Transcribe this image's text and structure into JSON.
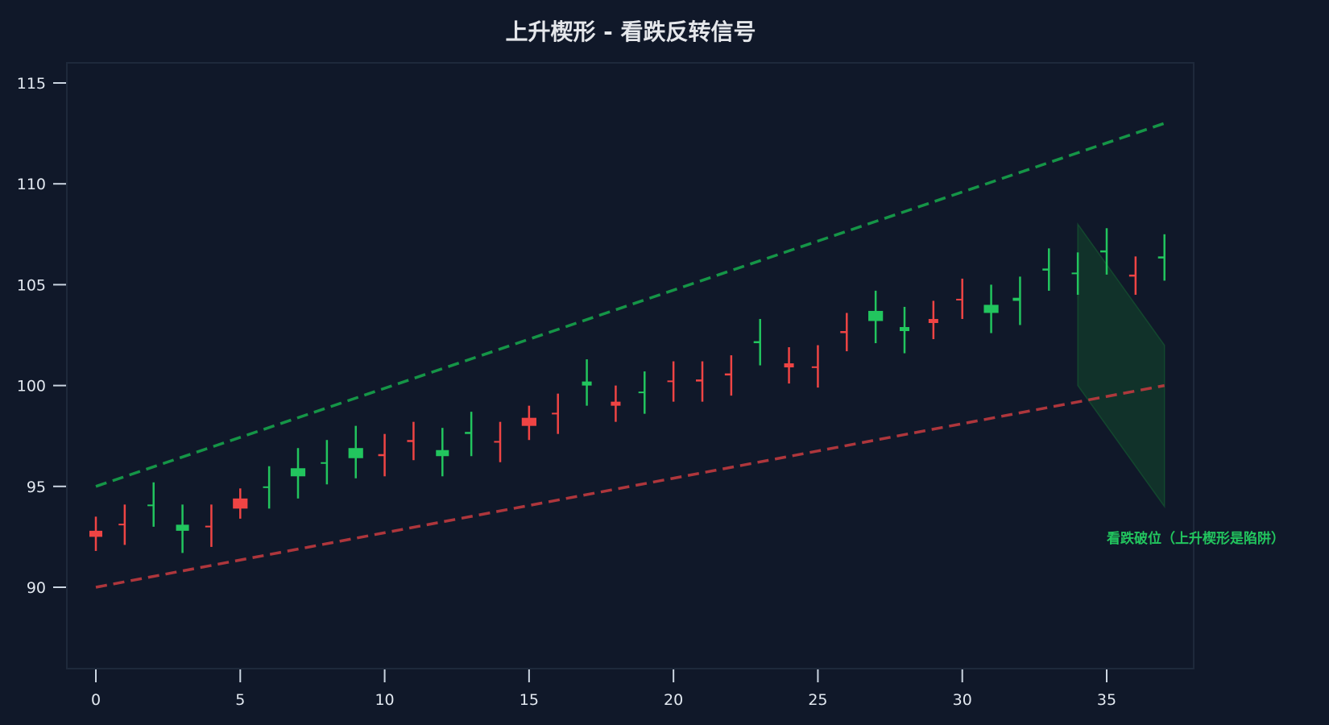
{
  "chart_data": {
    "type": "candlestick",
    "title": "上升楔形 - 看跌反转信号",
    "xlabel": "",
    "ylabel": "",
    "xlim": [
      -1,
      38
    ],
    "ylim": [
      86,
      116
    ],
    "x_ticks": [
      0,
      5,
      10,
      15,
      20,
      25,
      30,
      35
    ],
    "y_ticks": [
      90,
      95,
      100,
      105,
      110,
      115
    ],
    "grid": false,
    "colors": {
      "up": "#22c55e",
      "down": "#ef4444",
      "upper_line": "#16a34a",
      "lower_line": "#c03a3e",
      "zone_fill": "#14532d",
      "background": "#101829",
      "frame": "#1e293b",
      "annotation": "#22c55e"
    },
    "candles": [
      {
        "x": 0,
        "open": 92.8,
        "high": 93.5,
        "low": 91.8,
        "close": 92.5
      },
      {
        "x": 1,
        "open": 93.15,
        "high": 94.1,
        "low": 92.1,
        "close": 93.1
      },
      {
        "x": 2,
        "open": 94.05,
        "high": 95.2,
        "low": 93.0,
        "close": 94.1
      },
      {
        "x": 3,
        "open": 92.8,
        "high": 94.1,
        "low": 91.7,
        "close": 93.1
      },
      {
        "x": 4,
        "open": 93.05,
        "high": 94.1,
        "low": 92.0,
        "close": 93.0
      },
      {
        "x": 5,
        "open": 94.4,
        "high": 94.9,
        "low": 93.4,
        "close": 93.9
      },
      {
        "x": 6,
        "open": 94.98,
        "high": 96.0,
        "low": 93.9,
        "close": 95.0
      },
      {
        "x": 7,
        "open": 95.5,
        "high": 96.9,
        "low": 94.4,
        "close": 95.9
      },
      {
        "x": 8,
        "open": 96.15,
        "high": 97.3,
        "low": 95.1,
        "close": 96.2
      },
      {
        "x": 9,
        "open": 96.4,
        "high": 98.0,
        "low": 95.4,
        "close": 96.9
      },
      {
        "x": 10,
        "open": 96.6,
        "high": 97.6,
        "low": 95.5,
        "close": 96.5
      },
      {
        "x": 11,
        "open": 97.3,
        "high": 98.2,
        "low": 96.3,
        "close": 97.2
      },
      {
        "x": 12,
        "open": 96.5,
        "high": 97.9,
        "low": 95.5,
        "close": 96.8
      },
      {
        "x": 13,
        "open": 97.6,
        "high": 98.7,
        "low": 96.5,
        "close": 97.7
      },
      {
        "x": 14,
        "open": 97.25,
        "high": 98.2,
        "low": 96.2,
        "close": 97.2
      },
      {
        "x": 15,
        "open": 98.4,
        "high": 99.0,
        "low": 97.3,
        "close": 98.0
      },
      {
        "x": 16,
        "open": 98.65,
        "high": 99.6,
        "low": 97.6,
        "close": 98.6
      },
      {
        "x": 17,
        "open": 100.0,
        "high": 101.3,
        "low": 99.0,
        "close": 100.2
      },
      {
        "x": 18,
        "open": 99.2,
        "high": 100.0,
        "low": 98.2,
        "close": 99.0
      },
      {
        "x": 19,
        "open": 99.65,
        "high": 100.7,
        "low": 98.6,
        "close": 99.7
      },
      {
        "x": 20,
        "open": 100.25,
        "high": 101.2,
        "low": 99.2,
        "close": 100.2
      },
      {
        "x": 21,
        "open": 100.3,
        "high": 101.2,
        "low": 99.2,
        "close": 100.2
      },
      {
        "x": 22,
        "open": 100.6,
        "high": 101.5,
        "low": 99.5,
        "close": 100.5
      },
      {
        "x": 23,
        "open": 102.1,
        "high": 103.3,
        "low": 101.0,
        "close": 102.2
      },
      {
        "x": 24,
        "open": 101.1,
        "high": 101.9,
        "low": 100.1,
        "close": 100.9
      },
      {
        "x": 25,
        "open": 100.95,
        "high": 102.0,
        "low": 99.9,
        "close": 100.9
      },
      {
        "x": 26,
        "open": 102.7,
        "high": 103.6,
        "low": 101.7,
        "close": 102.6
      },
      {
        "x": 27,
        "open": 103.2,
        "high": 104.7,
        "low": 102.1,
        "close": 103.7
      },
      {
        "x": 28,
        "open": 102.7,
        "high": 103.9,
        "low": 101.6,
        "close": 102.9
      },
      {
        "x": 29,
        "open": 103.3,
        "high": 104.2,
        "low": 102.3,
        "close": 103.1
      },
      {
        "x": 30,
        "open": 104.3,
        "high": 105.3,
        "low": 103.3,
        "close": 104.25
      },
      {
        "x": 31,
        "open": 103.6,
        "high": 105.0,
        "low": 102.6,
        "close": 104.0
      },
      {
        "x": 32,
        "open": 104.2,
        "high": 105.4,
        "low": 103.0,
        "close": 104.35
      },
      {
        "x": 33,
        "open": 105.7,
        "high": 106.8,
        "low": 104.7,
        "close": 105.8
      },
      {
        "x": 34,
        "open": 105.58,
        "high": 106.6,
        "low": 104.5,
        "close": 105.6
      },
      {
        "x": 35,
        "open": 106.6,
        "high": 107.8,
        "low": 105.5,
        "close": 106.7
      },
      {
        "x": 36,
        "open": 105.5,
        "high": 106.4,
        "low": 104.5,
        "close": 105.4
      },
      {
        "x": 37,
        "open": 106.3,
        "high": 107.5,
        "low": 105.2,
        "close": 106.4
      }
    ],
    "trendlines": [
      {
        "name": "upper-resistance",
        "x": [
          0,
          37
        ],
        "y": [
          95,
          113
        ],
        "style": "dashed",
        "color": "#16a34a"
      },
      {
        "name": "lower-support",
        "x": [
          0,
          37
        ],
        "y": [
          90,
          100
        ],
        "style": "dashed",
        "color": "#c03a3e"
      }
    ],
    "projection_zone": {
      "points": [
        [
          34,
          108
        ],
        [
          37,
          102
        ],
        [
          37,
          94
        ],
        [
          34,
          100
        ]
      ],
      "fill": "#14532d",
      "opacity": 0.45
    },
    "annotations": [
      {
        "text": "看跌破位（上升楔形是陷阱）",
        "x": 37.2,
        "y": 92.4,
        "color": "#22c55e"
      }
    ]
  }
}
